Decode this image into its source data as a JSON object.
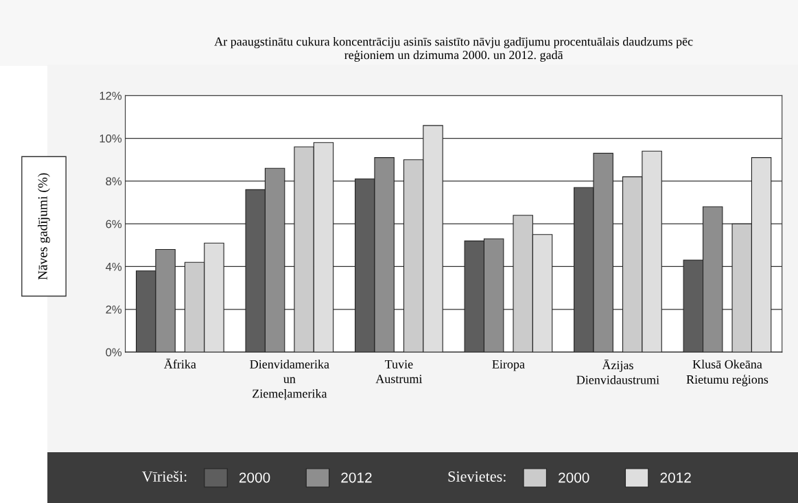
{
  "chart_data": {
    "type": "bar",
    "title": "Ar paaugstinātu cukura koncentrāciju asinīs saistīto nāvju gadījumu procentuālais daudzums pēc\nreģioniem un dzimuma 2000. un 2012. gadā",
    "ylabel": "Nāves gadījumi (%)",
    "categories": [
      "Āfrika",
      "Dienvidamerika\nun\nZiemeļamerika",
      "Tuvie\nAustrumi",
      "Eiropa",
      "Āzijas\nDienvidaustrumi",
      "Klusā Okeāna\nRietumu reģions"
    ],
    "series": [
      {
        "name": "2000",
        "color": "#5e5e5e",
        "values": [
          3.8,
          7.6,
          8.1,
          5.2,
          7.7,
          4.3
        ]
      },
      {
        "name": "2012",
        "color": "#8e8e8e",
        "values": [
          4.8,
          8.6,
          9.1,
          5.3,
          9.3,
          6.8
        ]
      },
      {
        "name": "2000",
        "color": "#cbcbcb",
        "values": [
          4.2,
          9.6,
          9.0,
          6.4,
          8.2,
          6.0
        ]
      },
      {
        "name": "2012",
        "color": "#dedede",
        "values": [
          5.1,
          9.8,
          10.6,
          5.5,
          9.4,
          9.1
        ]
      }
    ],
    "annotations": [
      "Vīrieši:",
      "Sievietes:"
    ],
    "ylim": [
      0,
      12
    ],
    "yticks": [
      {
        "value": 0,
        "label": "0%"
      },
      {
        "value": 2,
        "label": "2%"
      },
      {
        "value": 4,
        "label": "4%"
      },
      {
        "value": 6,
        "label": "6%"
      },
      {
        "value": 8,
        "label": "8%"
      },
      {
        "value": 10,
        "label": "10%"
      },
      {
        "value": 12,
        "label": "12%"
      }
    ],
    "grid": "y",
    "legend": "bottom"
  }
}
